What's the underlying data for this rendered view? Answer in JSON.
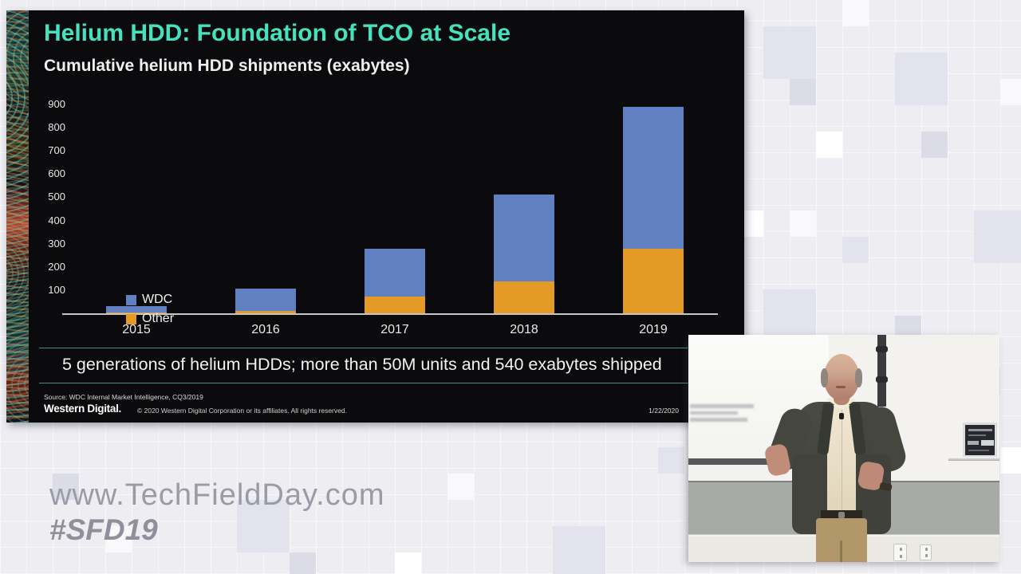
{
  "slide": {
    "title": "Helium HDD: Foundation of TCO at Scale",
    "subtitle": "Cumulative helium HDD shipments (exabytes)",
    "banner_text": "5 generations of helium HDDs; more than 50M units and 540 exabytes shipped",
    "source_note": "Source: WDC Internal Market Intelligence, CQ3/2019",
    "logo_text": "Western Digital.",
    "copyright": "© 2020 Western Digital Corporation or its affiliates. All rights reserved.",
    "date": "1/22/2020",
    "colors": {
      "title": "#46E2BE",
      "banner_line": "#4E8E76",
      "wdc_blue": "#6180C2",
      "other_orange": "#E49B26",
      "slide_bg": "#0B0B0D"
    }
  },
  "chart_data": {
    "type": "bar",
    "stacked": true,
    "title": "Cumulative helium HDD shipments (exabytes)",
    "categories": [
      "2015",
      "2016",
      "2017",
      "2018",
      "2019"
    ],
    "series_bottom_to_top": [
      {
        "name": "Other",
        "color": "#E49B26",
        "values": [
          2,
          12,
          72,
          137,
          280
        ]
      },
      {
        "name": "WDC",
        "color": "#6180C2",
        "values": [
          30,
          95,
          205,
          375,
          610
        ]
      }
    ],
    "totals": [
      32,
      107,
      277,
      512,
      890
    ],
    "legend_order": [
      "WDC",
      "Other"
    ],
    "legend_position": "middle-left",
    "xlabel": "",
    "ylabel": "",
    "ylim": [
      0,
      900
    ],
    "yticks": [
      900,
      800,
      700,
      600,
      500,
      400,
      300,
      200,
      100
    ],
    "zero_tick_label": "-",
    "grid": false,
    "units": "exabytes"
  },
  "watermark": {
    "line1": "www.TechFieldDay.com",
    "line2": "#SFD19"
  }
}
